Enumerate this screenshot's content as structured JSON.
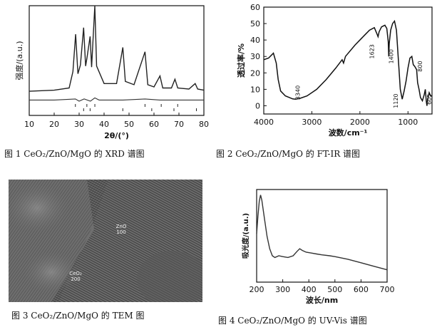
{
  "captions": {
    "fig1": "图 1   CeO₂/ZnO/MgO 的 XRD 谱图",
    "fig2": "图 2   CeO₂/ZnO/MgO 的 FT-IR 谱图",
    "fig3": "图 3   CeO₂/ZnO/MgO 的 TEM 图",
    "fig4": "图 4   CeO₂/ZnO/MgO 的 UV-Vis 谱图"
  },
  "tem": {
    "labels": [
      {
        "name": "ZnO",
        "plane": "100"
      },
      {
        "name": "CeO₂",
        "plane": "200"
      }
    ]
  },
  "chart_data": [
    {
      "type": "line",
      "xlabel": "2θ/(°)",
      "ylabel": "强度/(a.u.)",
      "xlim": [
        10,
        80
      ],
      "xticks": [
        10,
        20,
        30,
        40,
        50,
        60,
        70,
        80
      ],
      "y_ticks_shown": false,
      "series": [
        {
          "values": [
            [
              10,
              0.22
            ],
            [
              20,
              0.23
            ],
            [
              26,
              0.25
            ],
            [
              27.5,
              0.4
            ],
            [
              28.6,
              0.74
            ],
            [
              29.5,
              0.38
            ],
            [
              30.5,
              0.46
            ],
            [
              31.8,
              0.8
            ],
            [
              32.6,
              0.45
            ],
            [
              33.1,
              0.52
            ],
            [
              34.4,
              0.72
            ],
            [
              35.0,
              0.44
            ],
            [
              36.3,
              1.0
            ],
            [
              37.0,
              0.45
            ],
            [
              40,
              0.29
            ],
            [
              45,
              0.29
            ],
            [
              47.5,
              0.62
            ],
            [
              48.5,
              0.31
            ],
            [
              52,
              0.28
            ],
            [
              56.4,
              0.58
            ],
            [
              57.5,
              0.28
            ],
            [
              60,
              0.26
            ],
            [
              62.4,
              0.36
            ],
            [
              63.5,
              0.25
            ],
            [
              67,
              0.25
            ],
            [
              68.4,
              0.33
            ],
            [
              69.5,
              0.25
            ],
            [
              74,
              0.24
            ],
            [
              76.5,
              0.29
            ],
            [
              77.5,
              0.24
            ],
            [
              80,
              0.23
            ]
          ]
        },
        {
          "values": [
            [
              10,
              0.14
            ],
            [
              20,
              0.14
            ],
            [
              28.5,
              0.15
            ],
            [
              30,
              0.13
            ],
            [
              32,
              0.15
            ],
            [
              34.5,
              0.13
            ],
            [
              36.3,
              0.16
            ],
            [
              38,
              0.14
            ],
            [
              47.5,
              0.14
            ],
            [
              56.4,
              0.15
            ],
            [
              62.4,
              0.14
            ],
            [
              68,
              0.14
            ],
            [
              76.5,
              0.14
            ],
            [
              80,
              0.14
            ]
          ]
        }
      ],
      "reference_ticks": [
        28.5,
        31.8,
        33.1,
        34.4,
        36.3,
        47.5,
        56.4,
        59.1,
        62.9,
        68.0,
        69.5,
        77.0
      ]
    },
    {
      "type": "line",
      "xlabel": "波数/cm⁻¹",
      "ylabel": "透过率/%",
      "xlim": [
        4000,
        500
      ],
      "ylim": [
        -5,
        60
      ],
      "xticks": [
        4000,
        3000,
        2000,
        1000
      ],
      "yticks": [
        0,
        10,
        20,
        30,
        40,
        50,
        60
      ],
      "annotations": [
        "3340",
        "1623",
        "1400",
        "1120",
        "800",
        "605"
      ],
      "series": [
        {
          "values": [
            [
              4000,
              28
            ],
            [
              3900,
              29
            ],
            [
              3800,
              32
            ],
            [
              3740,
              26
            ],
            [
              3700,
              16
            ],
            [
              3650,
              9
            ],
            [
              3550,
              6
            ],
            [
              3400,
              4.2
            ],
            [
              3340,
              4
            ],
            [
              3250,
              4.5
            ],
            [
              3100,
              6
            ],
            [
              2900,
              10
            ],
            [
              2700,
              16
            ],
            [
              2500,
              23
            ],
            [
              2370,
              28
            ],
            [
              2340,
              26
            ],
            [
              2300,
              30
            ],
            [
              2100,
              37
            ],
            [
              1900,
              43
            ],
            [
              1800,
              46
            ],
            [
              1700,
              47.5
            ],
            [
              1650,
              44
            ],
            [
              1623,
              42
            ],
            [
              1600,
              45
            ],
            [
              1550,
              48
            ],
            [
              1480,
              49
            ],
            [
              1440,
              47
            ],
            [
              1410,
              39
            ],
            [
              1400,
              30
            ],
            [
              1390,
              38
            ],
            [
              1360,
              46
            ],
            [
              1320,
              50
            ],
            [
              1280,
              51.5
            ],
            [
              1240,
              46
            ],
            [
              1200,
              28
            ],
            [
              1160,
              10
            ],
            [
              1120,
              4
            ],
            [
              1080,
              9
            ],
            [
              1040,
              15
            ],
            [
              1000,
              23
            ],
            [
              960,
              29
            ],
            [
              920,
              30
            ],
            [
              890,
              25
            ],
            [
              860,
              24
            ],
            [
              820,
              22
            ],
            [
              800,
              14
            ],
            [
              770,
              10
            ],
            [
              740,
              5
            ],
            [
              700,
              3
            ],
            [
              660,
              7
            ],
            [
              640,
              10
            ],
            [
              620,
              3
            ],
            [
              605,
              0
            ],
            [
              590,
              4
            ],
            [
              560,
              8
            ],
            [
              530,
              6
            ],
            [
              500,
              6
            ]
          ]
        }
      ]
    },
    {
      "type": "line",
      "xlabel": "波长/nm",
      "ylabel": "吸光度/(a.u.)",
      "xlim": [
        200,
        700
      ],
      "xticks": [
        200,
        300,
        400,
        500,
        600,
        700
      ],
      "y_ticks_shown": false,
      "series": [
        {
          "values": [
            [
              200,
              0.55
            ],
            [
              205,
              0.75
            ],
            [
              210,
              0.92
            ],
            [
              215,
              0.99
            ],
            [
              220,
              0.93
            ],
            [
              230,
              0.72
            ],
            [
              240,
              0.52
            ],
            [
              250,
              0.38
            ],
            [
              260,
              0.3
            ],
            [
              270,
              0.28
            ],
            [
              285,
              0.3
            ],
            [
              300,
              0.29
            ],
            [
              320,
              0.28
            ],
            [
              340,
              0.3
            ],
            [
              355,
              0.35
            ],
            [
              365,
              0.38
            ],
            [
              375,
              0.36
            ],
            [
              390,
              0.34
            ],
            [
              410,
              0.33
            ],
            [
              430,
              0.32
            ],
            [
              450,
              0.31
            ],
            [
              480,
              0.3
            ],
            [
              500,
              0.29
            ],
            [
              550,
              0.26
            ],
            [
              600,
              0.22
            ],
            [
              650,
              0.18
            ],
            [
              700,
              0.14
            ]
          ]
        }
      ]
    }
  ]
}
